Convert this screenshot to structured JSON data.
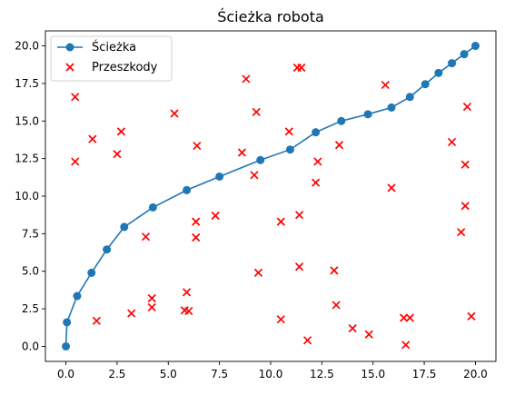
{
  "chart_data": {
    "type": "scatter",
    "title": "Ścieżka robota",
    "xlabel": "",
    "ylabel": "",
    "xlim": [
      -1.0,
      21.0
    ],
    "ylim": [
      -1.0,
      21.0
    ],
    "xticks": [
      0.0,
      2.5,
      5.0,
      7.5,
      10.0,
      12.5,
      15.0,
      17.5,
      20.0
    ],
    "yticks": [
      0.0,
      2.5,
      5.0,
      7.5,
      10.0,
      12.5,
      15.0,
      17.5,
      20.0
    ],
    "xtick_labels": [
      "0.0",
      "2.5",
      "5.0",
      "7.5",
      "10.0",
      "12.5",
      "15.0",
      "17.5",
      "20.0"
    ],
    "ytick_labels": [
      "0.0",
      "2.5",
      "5.0",
      "7.5",
      "10.0",
      "12.5",
      "15.0",
      "17.5",
      "20.0"
    ],
    "grid": false,
    "legend_position": "top-left",
    "series": [
      {
        "name": "Ścieżka",
        "kind": "line-with-markers",
        "color": "#1f77b4",
        "points": [
          [
            0.0,
            0.0
          ],
          [
            0.05,
            1.6
          ],
          [
            0.55,
            3.35
          ],
          [
            1.25,
            4.9
          ],
          [
            2.0,
            6.45
          ],
          [
            2.85,
            7.95
          ],
          [
            4.25,
            9.25
          ],
          [
            5.9,
            10.4
          ],
          [
            7.5,
            11.3
          ],
          [
            9.5,
            12.4
          ],
          [
            10.95,
            13.1
          ],
          [
            12.2,
            14.25
          ],
          [
            13.45,
            15.0
          ],
          [
            14.75,
            15.45
          ],
          [
            15.9,
            15.9
          ],
          [
            16.8,
            16.6
          ],
          [
            17.55,
            17.45
          ],
          [
            18.2,
            18.2
          ],
          [
            18.85,
            18.85
          ],
          [
            19.45,
            19.45
          ],
          [
            20.0,
            20.0
          ]
        ]
      },
      {
        "name": "Przeszkody",
        "kind": "scatter-x",
        "color": "#ff0000",
        "points": [
          [
            0.45,
            16.6
          ],
          [
            0.45,
            12.3
          ],
          [
            1.3,
            13.8
          ],
          [
            1.5,
            1.7
          ],
          [
            2.5,
            12.8
          ],
          [
            2.7,
            14.3
          ],
          [
            3.2,
            2.2
          ],
          [
            3.9,
            7.3
          ],
          [
            4.2,
            3.2
          ],
          [
            4.2,
            2.6
          ],
          [
            5.3,
            15.5
          ],
          [
            5.8,
            2.4
          ],
          [
            5.9,
            3.6
          ],
          [
            6.0,
            2.35
          ],
          [
            6.35,
            8.3
          ],
          [
            6.35,
            7.25
          ],
          [
            6.4,
            13.35
          ],
          [
            7.3,
            8.7
          ],
          [
            8.6,
            12.9
          ],
          [
            8.8,
            17.8
          ],
          [
            9.2,
            11.4
          ],
          [
            9.3,
            15.6
          ],
          [
            9.4,
            4.9
          ],
          [
            10.5,
            8.3
          ],
          [
            10.5,
            1.8
          ],
          [
            10.9,
            14.3
          ],
          [
            11.3,
            18.55
          ],
          [
            11.5,
            18.55
          ],
          [
            11.4,
            5.3
          ],
          [
            11.4,
            8.75
          ],
          [
            11.8,
            0.4
          ],
          [
            12.2,
            10.9
          ],
          [
            12.3,
            12.3
          ],
          [
            13.1,
            5.05
          ],
          [
            13.2,
            2.75
          ],
          [
            13.35,
            13.4
          ],
          [
            14.0,
            1.2
          ],
          [
            14.8,
            0.8
          ],
          [
            15.6,
            17.4
          ],
          [
            15.9,
            10.55
          ],
          [
            16.5,
            1.9
          ],
          [
            16.6,
            0.1
          ],
          [
            16.8,
            1.9
          ],
          [
            18.85,
            13.6
          ],
          [
            19.3,
            7.6
          ],
          [
            19.5,
            12.1
          ],
          [
            19.5,
            9.35
          ],
          [
            19.6,
            15.95
          ],
          [
            19.8,
            2.0
          ]
        ]
      }
    ]
  }
}
